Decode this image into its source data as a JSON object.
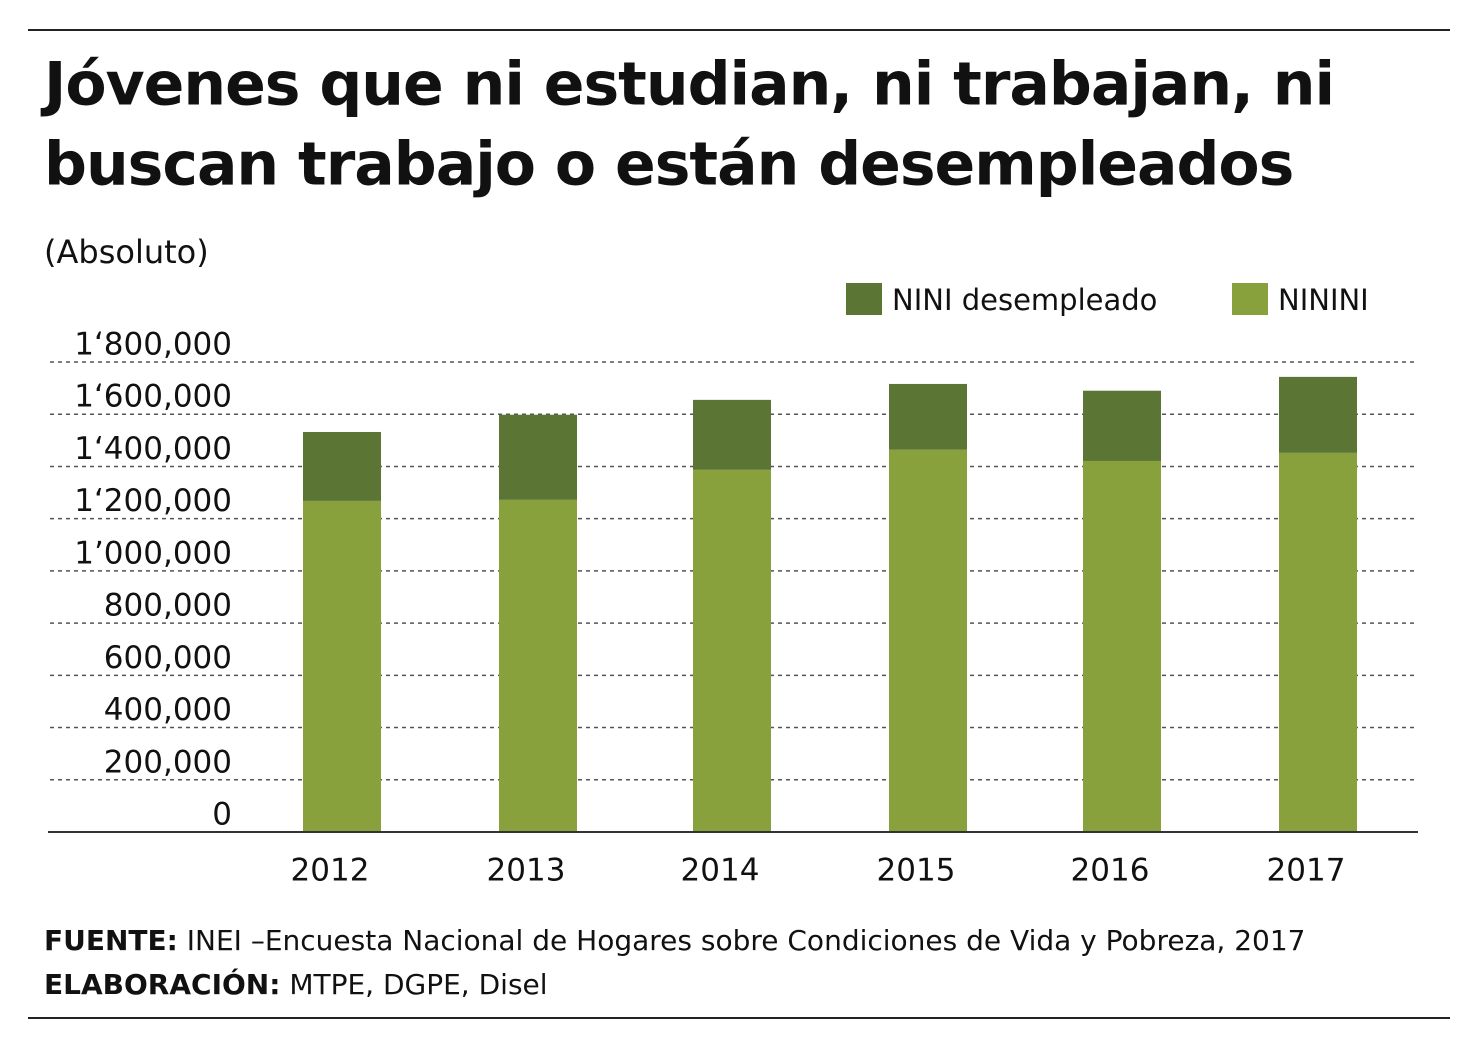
{
  "chart_data": {
    "type": "stacked-bar",
    "title_lines": [
      "Jóvenes que ni estudian, ni trabajan, ni",
      "buscan trabajo o están desempleados"
    ],
    "subtitle": "(Absoluto)",
    "categories": [
      "2012",
      "2013",
      "2014",
      "2015",
      "2016",
      "2017"
    ],
    "series": [
      {
        "name": "NINI desempleado",
        "color": "#5b7634",
        "values": [
          264000,
          326000,
          268000,
          252000,
          269000,
          291000
        ]
      },
      {
        "name": "NININI",
        "color": "#88a13d",
        "values": [
          1268000,
          1272000,
          1387000,
          1464000,
          1421000,
          1452000
        ]
      }
    ],
    "ylim": [
      0,
      1800000
    ],
    "yticks": [
      0,
      {
        "value": 200000,
        "label": "200,000"
      },
      {
        "value": 400000,
        "label": "400,000"
      },
      {
        "value": 600000,
        "label": "600,000"
      },
      {
        "value": 800000,
        "label": "800,000"
      },
      {
        "value": 1000000,
        "label": "1’000,000"
      },
      {
        "value": 1200000,
        "label": "1‘200,000"
      },
      {
        "value": 1400000,
        "label": "1‘400,000"
      },
      {
        "value": 1600000,
        "label": "1‘600,000"
      },
      {
        "value": 1800000,
        "label": "1‘800,000"
      }
    ],
    "grid": true,
    "source_label": "FUENTE:",
    "source": "INEI –Encuesta Nacional de Hogares sobre Condiciones de Vida y Pobreza, 2017",
    "credit_label": "ELABORACIÓN:",
    "credit": "MTPE, DGPE, Disel"
  }
}
